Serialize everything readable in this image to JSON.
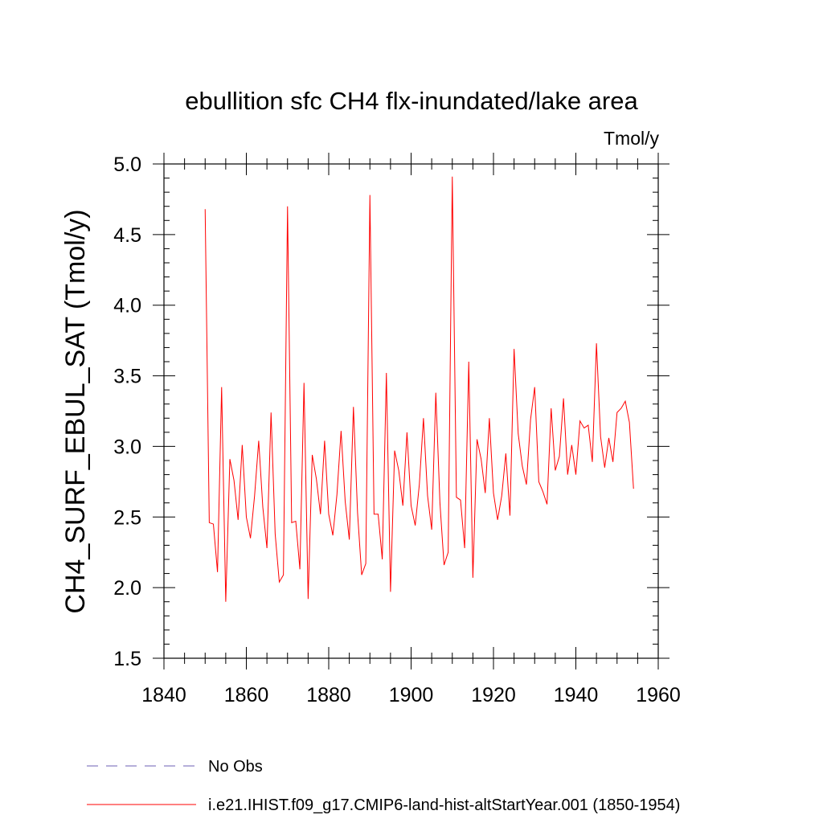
{
  "chart_data": {
    "type": "line",
    "title": "ebullition sfc CH4 flx-inundated/lake area",
    "units_label": "Tmol/y",
    "ylabel": "CH4_SURF_EBUL_SAT  (Tmol/y)",
    "xlabel": "",
    "xlim": [
      1840,
      1960
    ],
    "ylim": [
      1.5,
      5.0
    ],
    "x_ticks": [
      1840,
      1860,
      1880,
      1900,
      1920,
      1940,
      1960
    ],
    "x_tick_labels": [
      "1840",
      "1860",
      "1880",
      "1900",
      "1920",
      "1940",
      "1960"
    ],
    "y_ticks": [
      1.5,
      2.0,
      2.5,
      3.0,
      3.5,
      4.0,
      4.5,
      5.0
    ],
    "y_tick_labels": [
      "1.5",
      "2.0",
      "2.5",
      "3.0",
      "3.5",
      "4.0",
      "4.5",
      "5.0"
    ],
    "grid": false,
    "legend_position": "bottom",
    "series": [
      {
        "name": "No Obs",
        "color": "#6b5fb5",
        "dash": "dashed",
        "x": [],
        "values": []
      },
      {
        "name": "i.e21.IHIST.f09_g17.CMIP6-land-hist-altStartYear.001 (1850-1954)",
        "color": "#ff0000",
        "dash": "solid",
        "x": [
          1850,
          1851,
          1852,
          1853,
          1854,
          1855,
          1856,
          1857,
          1858,
          1859,
          1860,
          1861,
          1862,
          1863,
          1864,
          1865,
          1866,
          1867,
          1868,
          1869,
          1870,
          1871,
          1872,
          1873,
          1874,
          1875,
          1876,
          1877,
          1878,
          1879,
          1880,
          1881,
          1882,
          1883,
          1884,
          1885,
          1886,
          1887,
          1888,
          1889,
          1890,
          1891,
          1892,
          1893,
          1894,
          1895,
          1896,
          1897,
          1898,
          1899,
          1900,
          1901,
          1902,
          1903,
          1904,
          1905,
          1906,
          1907,
          1908,
          1909,
          1910,
          1911,
          1912,
          1913,
          1914,
          1915,
          1916,
          1917,
          1918,
          1919,
          1920,
          1921,
          1922,
          1923,
          1924,
          1925,
          1926,
          1927,
          1928,
          1929,
          1930,
          1931,
          1932,
          1933,
          1934,
          1935,
          1936,
          1937,
          1938,
          1939,
          1940,
          1941,
          1942,
          1943,
          1944,
          1945,
          1946,
          1947,
          1948,
          1949,
          1950,
          1951,
          1952,
          1953,
          1954
        ],
        "values": [
          4.68,
          2.46,
          2.45,
          2.11,
          3.42,
          1.9,
          2.91,
          2.76,
          2.48,
          3.01,
          2.5,
          2.35,
          2.65,
          3.04,
          2.57,
          2.28,
          3.24,
          2.38,
          2.04,
          2.09,
          4.7,
          2.46,
          2.47,
          2.13,
          3.45,
          1.92,
          2.94,
          2.77,
          2.52,
          3.04,
          2.52,
          2.37,
          2.66,
          3.11,
          2.61,
          2.34,
          3.28,
          2.53,
          2.09,
          2.17,
          4.78,
          2.52,
          2.52,
          2.2,
          3.52,
          1.97,
          2.97,
          2.83,
          2.58,
          3.1,
          2.58,
          2.44,
          2.73,
          3.2,
          2.65,
          2.41,
          3.38,
          2.6,
          2.16,
          2.25,
          4.91,
          2.64,
          2.62,
          2.28,
          3.6,
          2.07,
          3.05,
          2.91,
          2.67,
          3.2,
          2.67,
          2.48,
          2.65,
          2.95,
          2.51,
          3.69,
          3.09,
          2.86,
          2.73,
          3.19,
          3.42,
          2.75,
          2.68,
          2.59,
          3.27,
          2.83,
          2.93,
          3.34,
          2.8,
          3.01,
          2.8,
          3.18,
          3.13,
          3.15,
          2.89,
          3.73,
          3.07,
          2.85,
          3.06,
          2.89,
          3.24,
          3.27,
          3.32,
          3.17,
          2.7
        ]
      }
    ]
  }
}
